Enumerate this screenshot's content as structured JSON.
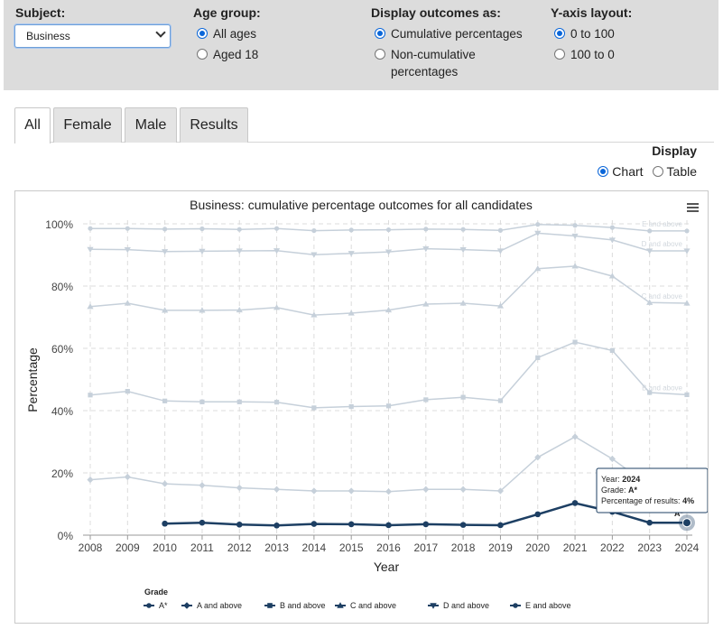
{
  "filters": {
    "subject": {
      "label": "Subject:",
      "value": "Business"
    },
    "age_group": {
      "label": "Age group:",
      "options": [
        "All ages",
        "Aged 18"
      ],
      "selected": 0
    },
    "display_outcomes": {
      "label": "Display outcomes as:",
      "options": [
        "Cumulative percentages",
        "Non-cumulative percentages"
      ],
      "selected": 0
    },
    "y_axis_layout": {
      "label": "Y-axis layout:",
      "options": [
        "0 to 100",
        "100 to 0"
      ],
      "selected": 0
    }
  },
  "tabs": [
    "All",
    "Female",
    "Male",
    "Results"
  ],
  "active_tab": 0,
  "display": {
    "label": "Display",
    "options": [
      "Chart",
      "Table"
    ],
    "selected": 0
  },
  "menu_icon": "hamburger-menu-icon",
  "tooltip": {
    "year_label": "Year:",
    "year": "2024",
    "grade_label": "Grade:",
    "grade": "A*",
    "pct_label": "Percentage of results:",
    "pct": "4%"
  },
  "legend_title": "Grade",
  "colors": {
    "highlight": "#1d3f63",
    "faded": "#c6d0da",
    "filter_bg": "#dcdcdc",
    "radio": "#0a66d9"
  },
  "chart_data": {
    "type": "line",
    "title": "Business: cumulative percentage outcomes for all candidates",
    "xlabel": "Year",
    "ylabel": "Percentage",
    "x": [
      2008,
      2009,
      2010,
      2011,
      2012,
      2013,
      2014,
      2015,
      2016,
      2017,
      2018,
      2019,
      2020,
      2021,
      2022,
      2023,
      2024
    ],
    "ylim": [
      0,
      100
    ],
    "yticks": [
      "0%",
      "20%",
      "40%",
      "60%",
      "80%",
      "100%"
    ],
    "grid": true,
    "legend_position": "bottom",
    "series": [
      {
        "name": "A*",
        "values": [
          null,
          null,
          3.7,
          4.0,
          3.4,
          3.1,
          3.6,
          3.5,
          3.2,
          3.5,
          3.3,
          3.2,
          6.7,
          10.3,
          7.5,
          4.0,
          4.0
        ]
      },
      {
        "name": "A and above",
        "values": [
          17.8,
          18.7,
          16.5,
          16.0,
          15.2,
          14.7,
          14.2,
          14.2,
          14.0,
          14.7,
          14.7,
          14.2,
          25.0,
          31.6,
          24.5,
          15.8,
          15.4
        ]
      },
      {
        "name": "B and above",
        "values": [
          45.0,
          46.2,
          43.1,
          42.8,
          42.8,
          42.7,
          40.9,
          41.3,
          41.5,
          43.5,
          44.3,
          43.2,
          57.0,
          62.0,
          59.3,
          45.8,
          45.1
        ]
      },
      {
        "name": "C and above",
        "values": [
          73.4,
          74.5,
          72.2,
          72.2,
          72.3,
          73.1,
          70.7,
          71.3,
          72.3,
          74.2,
          74.5,
          73.6,
          85.6,
          86.4,
          83.2,
          74.7,
          74.5
        ]
      },
      {
        "name": "D and above",
        "values": [
          91.8,
          91.7,
          91.1,
          91.2,
          91.3,
          91.4,
          90.1,
          90.5,
          91.0,
          92.0,
          91.7,
          91.3,
          97.0,
          96.1,
          94.8,
          91.3,
          91.3
        ]
      },
      {
        "name": "E and above",
        "values": [
          98.5,
          98.5,
          98.3,
          98.4,
          98.2,
          98.5,
          97.8,
          98.0,
          98.1,
          98.3,
          98.2,
          97.9,
          99.8,
          99.5,
          98.8,
          97.7,
          97.7
        ]
      }
    ],
    "series_end_labels": [
      "A*",
      "A and above",
      "B and above",
      "C and above",
      "D and above",
      "E and above"
    ]
  }
}
